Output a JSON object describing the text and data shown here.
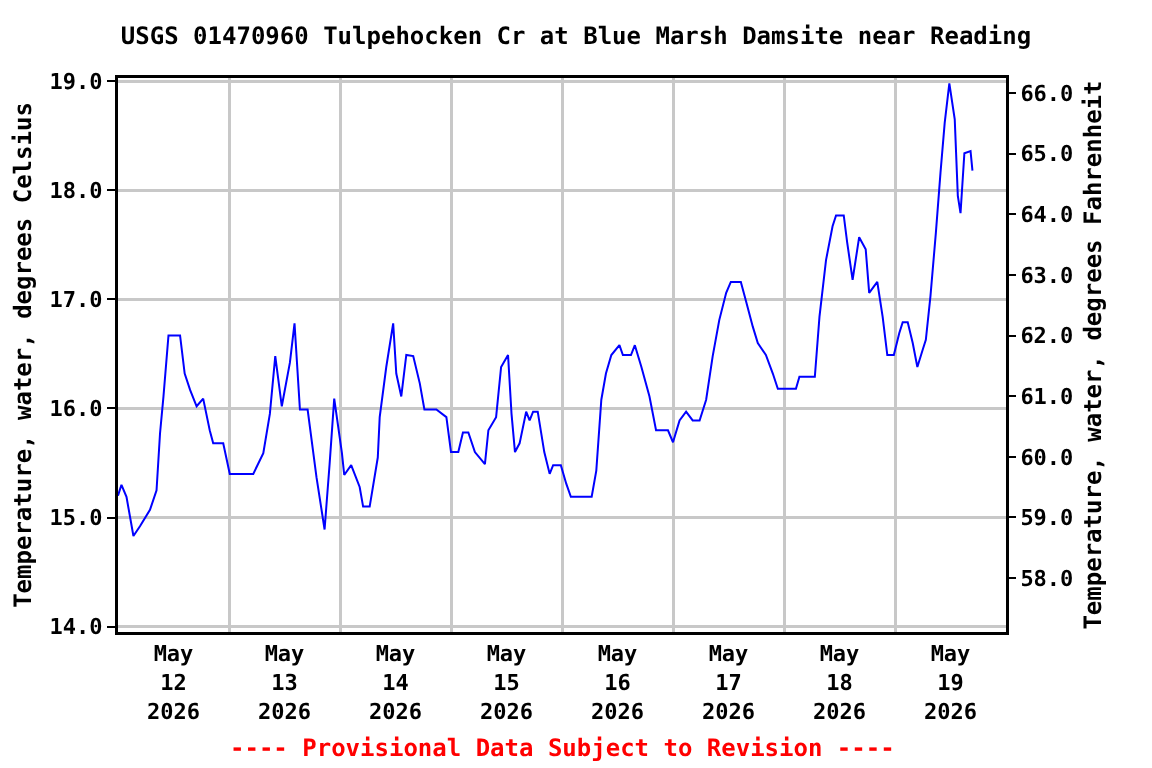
{
  "chart_data": {
    "type": "line",
    "title": "USGS 01470960 Tulpehocken Cr at Blue Marsh Damsite near Reading",
    "ylabel": "Temperature, water, degrees Celsius",
    "y2label": "Temperature, water, degrees Fahrenheit",
    "annotations": [
      "---- Provisional Data Subject to Revision ----"
    ],
    "xlim": [
      "2026-05-12T00:00",
      "2026-05-20T00:00"
    ],
    "xticks": [
      {
        "value": "2026-05-12T12:00",
        "label": "May\n12\n2026"
      },
      {
        "value": "2026-05-13T12:00",
        "label": "May\n13\n2026"
      },
      {
        "value": "2026-05-14T12:00",
        "label": "May\n14\n2026"
      },
      {
        "value": "2026-05-15T12:00",
        "label": "May\n15\n2026"
      },
      {
        "value": "2026-05-16T12:00",
        "label": "May\n16\n2026"
      },
      {
        "value": "2026-05-17T12:00",
        "label": "May\n17\n2026"
      },
      {
        "value": "2026-05-18T12:00",
        "label": "May\n18\n2026"
      },
      {
        "value": "2026-05-19T12:00",
        "label": "May\n19\n2026"
      },
      {
        "value": "2026-05-13T00:00",
        "label": null
      },
      {
        "value": "2026-05-14T00:00",
        "label": null
      },
      {
        "value": "2026-05-15T00:00",
        "label": null
      },
      {
        "value": "2026-05-16T00:00",
        "label": null
      },
      {
        "value": "2026-05-17T00:00",
        "label": null
      },
      {
        "value": "2026-05-18T00:00",
        "label": null
      },
      {
        "value": "2026-05-19T00:00",
        "label": null
      }
    ],
    "ylim": [
      13.95,
      19.03
    ],
    "yticks": [
      {
        "value": 14,
        "label": "14.0"
      },
      {
        "value": 15,
        "label": "15.0"
      },
      {
        "value": 16,
        "label": "16.0"
      },
      {
        "value": 17,
        "label": "17.0"
      },
      {
        "value": 18,
        "label": "18.0"
      },
      {
        "value": 19,
        "label": "19.0"
      }
    ],
    "y2lim": [
      57.11,
      66.25
    ],
    "y2ticks": [
      {
        "value": 58,
        "label": "58.0"
      },
      {
        "value": 59,
        "label": "59.0"
      },
      {
        "value": 60,
        "label": "60.0"
      },
      {
        "value": 61,
        "label": "61.0"
      },
      {
        "value": 62,
        "label": "62.0"
      },
      {
        "value": 63,
        "label": "63.0"
      },
      {
        "value": 64,
        "label": "64.0"
      },
      {
        "value": 65,
        "label": "65.0"
      },
      {
        "value": 66,
        "label": "66.0"
      }
    ],
    "grid": true,
    "marker": "none",
    "line_style": "solid",
    "x": [
      "2026-05-12T00:00",
      "2026-05-12T00:45",
      "2026-05-12T01:50",
      "2026-05-12T03:20",
      "2026-05-12T04:45",
      "2026-05-12T06:55",
      "2026-05-12T08:20",
      "2026-05-12T09:05",
      "2026-05-12T09:50",
      "2026-05-12T10:55",
      "2026-05-12T13:25",
      "2026-05-12T14:25",
      "2026-05-12T15:35",
      "2026-05-12T17:00",
      "2026-05-12T18:25",
      "2026-05-12T19:50",
      "2026-05-12T20:35",
      "2026-05-12T22:45",
      "2026-05-13T00:10",
      "2026-05-13T05:15",
      "2026-05-13T07:25",
      "2026-05-13T08:50",
      "2026-05-13T10:00",
      "2026-05-13T11:25",
      "2026-05-13T13:10",
      "2026-05-13T14:10",
      "2026-05-13T15:20",
      "2026-05-13T17:00",
      "2026-05-13T18:55",
      "2026-05-13T20:40",
      "2026-05-13T21:45",
      "2026-05-13T22:45",
      "2026-05-14T00:25",
      "2026-05-14T00:55",
      "2026-05-14T02:25",
      "2026-05-14T04:15",
      "2026-05-14T05:00",
      "2026-05-14T06:25",
      "2026-05-14T08:10",
      "2026-05-14T08:35",
      "2026-05-14T10:00",
      "2026-05-14T11:30",
      "2026-05-14T12:10",
      "2026-05-14T13:15",
      "2026-05-14T14:20",
      "2026-05-14T15:50",
      "2026-05-14T17:15",
      "2026-05-14T18:15",
      "2026-05-14T20:50",
      "2026-05-14T23:00",
      "2026-05-15T00:00",
      "2026-05-15T01:35",
      "2026-05-15T02:35",
      "2026-05-15T03:45",
      "2026-05-15T05:10",
      "2026-05-15T07:20",
      "2026-05-15T08:05",
      "2026-05-15T09:45",
      "2026-05-15T10:50",
      "2026-05-15T12:20",
      "2026-05-15T13:05",
      "2026-05-15T13:50",
      "2026-05-15T14:50",
      "2026-05-15T16:15",
      "2026-05-15T17:00",
      "2026-05-15T17:45",
      "2026-05-15T18:45",
      "2026-05-15T20:10",
      "2026-05-15T21:20",
      "2026-05-15T22:05",
      "2026-05-15T23:45",
      "2026-05-16T00:55",
      "2026-05-16T01:55",
      "2026-05-16T06:25",
      "2026-05-16T07:25",
      "2026-05-16T08:30",
      "2026-05-16T09:30",
      "2026-05-16T10:40",
      "2026-05-16T12:25",
      "2026-05-16T13:10",
      "2026-05-16T14:55",
      "2026-05-16T15:45",
      "2026-05-16T17:10",
      "2026-05-16T18:55",
      "2026-05-16T20:20",
      "2026-05-16T22:55",
      "2026-05-17T00:00",
      "2026-05-17T01:25",
      "2026-05-17T02:50",
      "2026-05-17T04:15",
      "2026-05-17T05:45",
      "2026-05-17T07:10",
      "2026-05-17T08:35",
      "2026-05-17T10:00",
      "2026-05-17T11:30",
      "2026-05-17T12:30",
      "2026-05-17T14:40",
      "2026-05-17T15:45",
      "2026-05-17T17:15",
      "2026-05-17T18:20",
      "2026-05-17T20:05",
      "2026-05-17T21:35",
      "2026-05-17T22:40",
      "2026-05-18T02:35",
      "2026-05-18T03:20",
      "2026-05-18T06:40",
      "2026-05-18T07:40",
      "2026-05-18T09:05",
      "2026-05-18T10:30",
      "2026-05-18T11:15",
      "2026-05-18T12:55",
      "2026-05-18T13:40",
      "2026-05-18T14:50",
      "2026-05-18T16:15",
      "2026-05-18T17:40",
      "2026-05-18T18:25",
      "2026-05-18T20:10",
      "2026-05-18T21:20",
      "2026-05-18T22:20",
      "2026-05-18T23:45",
      "2026-05-19T00:55",
      "2026-05-19T01:40",
      "2026-05-19T02:45",
      "2026-05-19T03:50",
      "2026-05-19T04:50",
      "2026-05-19T06:00",
      "2026-05-19T06:40",
      "2026-05-19T07:40",
      "2026-05-19T08:50",
      "2026-05-19T09:50",
      "2026-05-19T10:45",
      "2026-05-19T11:45",
      "2026-05-19T12:55",
      "2026-05-19T13:35",
      "2026-05-19T14:10",
      "2026-05-19T15:00",
      "2026-05-19T16:20",
      "2026-05-19T16:45"
    ],
    "series": [
      {
        "color": "#0000ff",
        "values": [
          15.2,
          15.3,
          15.19,
          14.83,
          14.92,
          15.07,
          15.25,
          15.77,
          16.11,
          16.67,
          16.67,
          16.32,
          16.17,
          16.02,
          16.09,
          15.8,
          15.68,
          15.68,
          15.4,
          15.4,
          15.59,
          15.95,
          16.48,
          16.02,
          16.42,
          16.78,
          15.99,
          15.99,
          15.37,
          14.89,
          15.49,
          16.09,
          15.59,
          15.39,
          15.48,
          15.28,
          15.1,
          15.1,
          15.55,
          15.92,
          16.38,
          16.78,
          16.32,
          16.11,
          16.49,
          16.48,
          16.23,
          15.99,
          15.99,
          15.92,
          15.6,
          15.6,
          15.78,
          15.78,
          15.6,
          15.49,
          15.8,
          15.92,
          16.38,
          16.49,
          15.95,
          15.6,
          15.68,
          15.97,
          15.89,
          15.97,
          15.97,
          15.6,
          15.4,
          15.48,
          15.48,
          15.31,
          15.19,
          15.19,
          15.43,
          16.08,
          16.32,
          16.49,
          16.58,
          16.49,
          16.49,
          16.58,
          16.38,
          16.11,
          15.8,
          15.8,
          15.69,
          15.89,
          15.97,
          15.89,
          15.89,
          16.08,
          16.48,
          16.81,
          17.06,
          17.16,
          17.16,
          16.99,
          16.75,
          16.6,
          16.49,
          16.32,
          16.18,
          16.18,
          16.29,
          16.29,
          16.84,
          17.36,
          17.67,
          17.77,
          17.77,
          17.52,
          17.18,
          17.57,
          17.46,
          17.06,
          17.16,
          16.84,
          16.49,
          16.49,
          16.69,
          16.79,
          16.79,
          16.6,
          16.38,
          16.54,
          16.63,
          17.03,
          17.61,
          18.16,
          18.62,
          18.98,
          18.65,
          17.95,
          17.79,
          18.34,
          18.36,
          18.18
        ]
      }
    ]
  }
}
